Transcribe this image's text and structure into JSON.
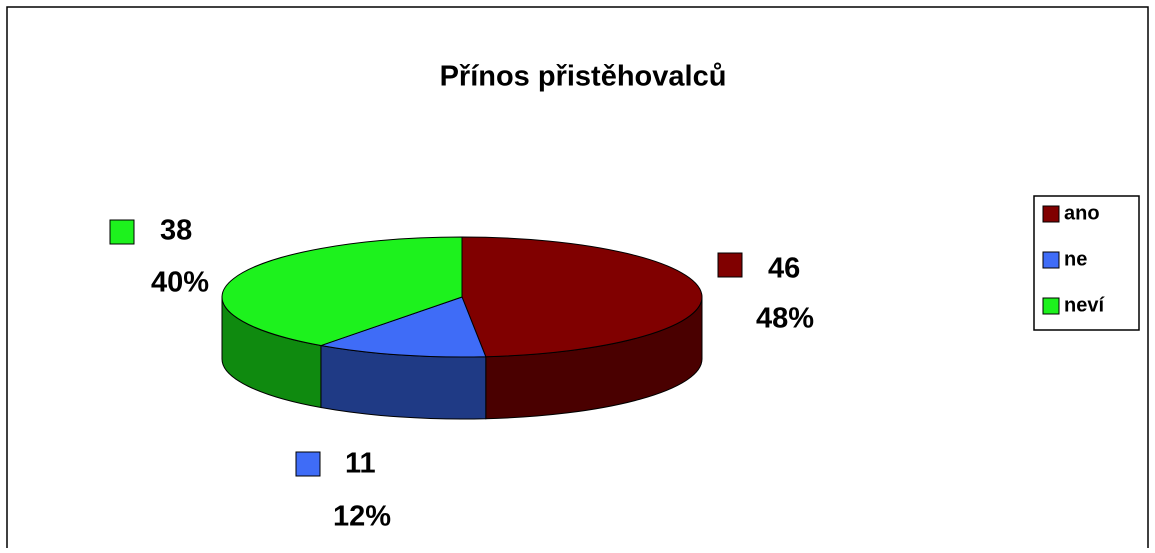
{
  "chart_data": {
    "type": "pie3d",
    "title": "Přínos přistěhovalců",
    "categories": [
      "ano",
      "ne",
      "neví"
    ],
    "values": [
      46,
      11,
      38
    ],
    "percent_labels": [
      "48%",
      "12%",
      "40%"
    ],
    "colors": [
      "#800000",
      "#3f6cf7",
      "#1df21d"
    ],
    "side_colors": [
      "#4a0000",
      "#1f3a85",
      "#0f8a0f"
    ],
    "legend": "right"
  }
}
